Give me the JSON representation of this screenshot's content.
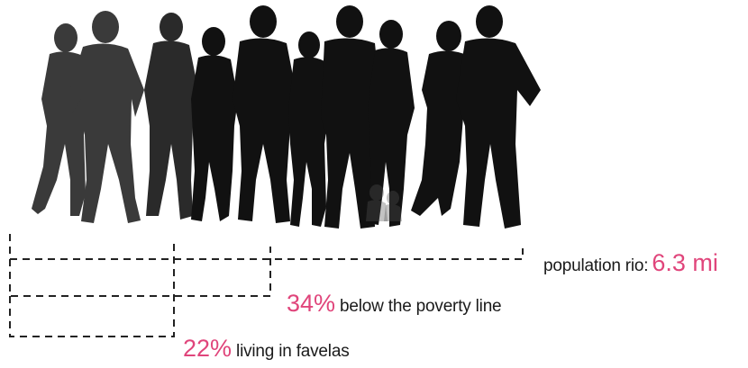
{
  "figure": {
    "people_count": 12,
    "silhouette_color": "#111111",
    "accent_color": "#e0457b",
    "line_color": "#222222"
  },
  "population": {
    "label": "population rio:",
    "value": "6.3 mi"
  },
  "poverty": {
    "value": "34%",
    "label": "below the poverty line"
  },
  "favelas": {
    "value": "22%",
    "label": "living in favelas"
  }
}
